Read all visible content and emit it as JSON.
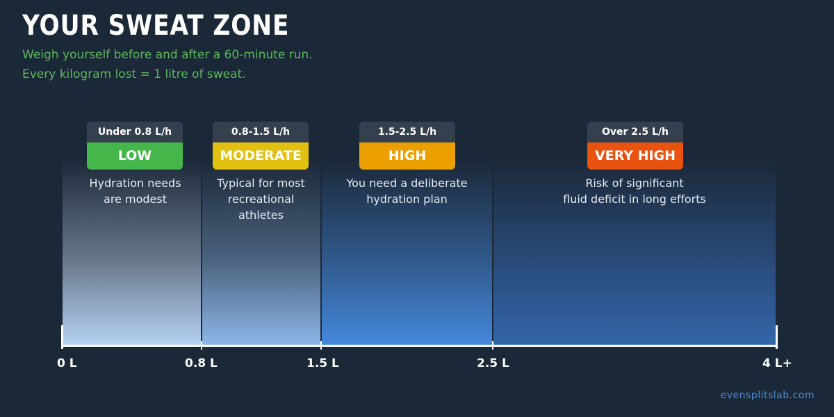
{
  "header": {
    "title": "YOUR SWEAT ZONE",
    "subtitle_line1": "Weigh yourself before and after a 60-minute run.",
    "subtitle_line2": "Every kilogram lost = 1 litre of sweat."
  },
  "zones": [
    {
      "range": "Under 0.8 L/h",
      "level": "LOW",
      "color": "#45b649",
      "desc": [
        "Hydration needs",
        "are modest"
      ]
    },
    {
      "range": "0.8-1.5 L/h",
      "level": "MODERATE",
      "color": "#e2c011",
      "desc": [
        "Typical for most",
        "recreational",
        "athletes"
      ]
    },
    {
      "range": "1.5-2.5 L/h",
      "level": "HIGH",
      "color": "#eba000",
      "desc": [
        "You need a deliberate",
        "hydration plan"
      ]
    },
    {
      "range": "Over 2.5 L/h",
      "level": "VERY HIGH",
      "color": "#e85310",
      "desc": [
        "Risk of significant",
        "fluid deficit in long efforts"
      ]
    }
  ],
  "axis": {
    "ticks": [
      "0 L",
      "0.8 L",
      "1.5 L",
      "2.5 L",
      "4 L+"
    ]
  },
  "footer": {
    "link": "evensplitslab.com"
  },
  "colors": {
    "background": "#1b2838",
    "subtitle": "#5cb85c",
    "pill": "#34404e",
    "footer_link": "#4a90e2"
  }
}
